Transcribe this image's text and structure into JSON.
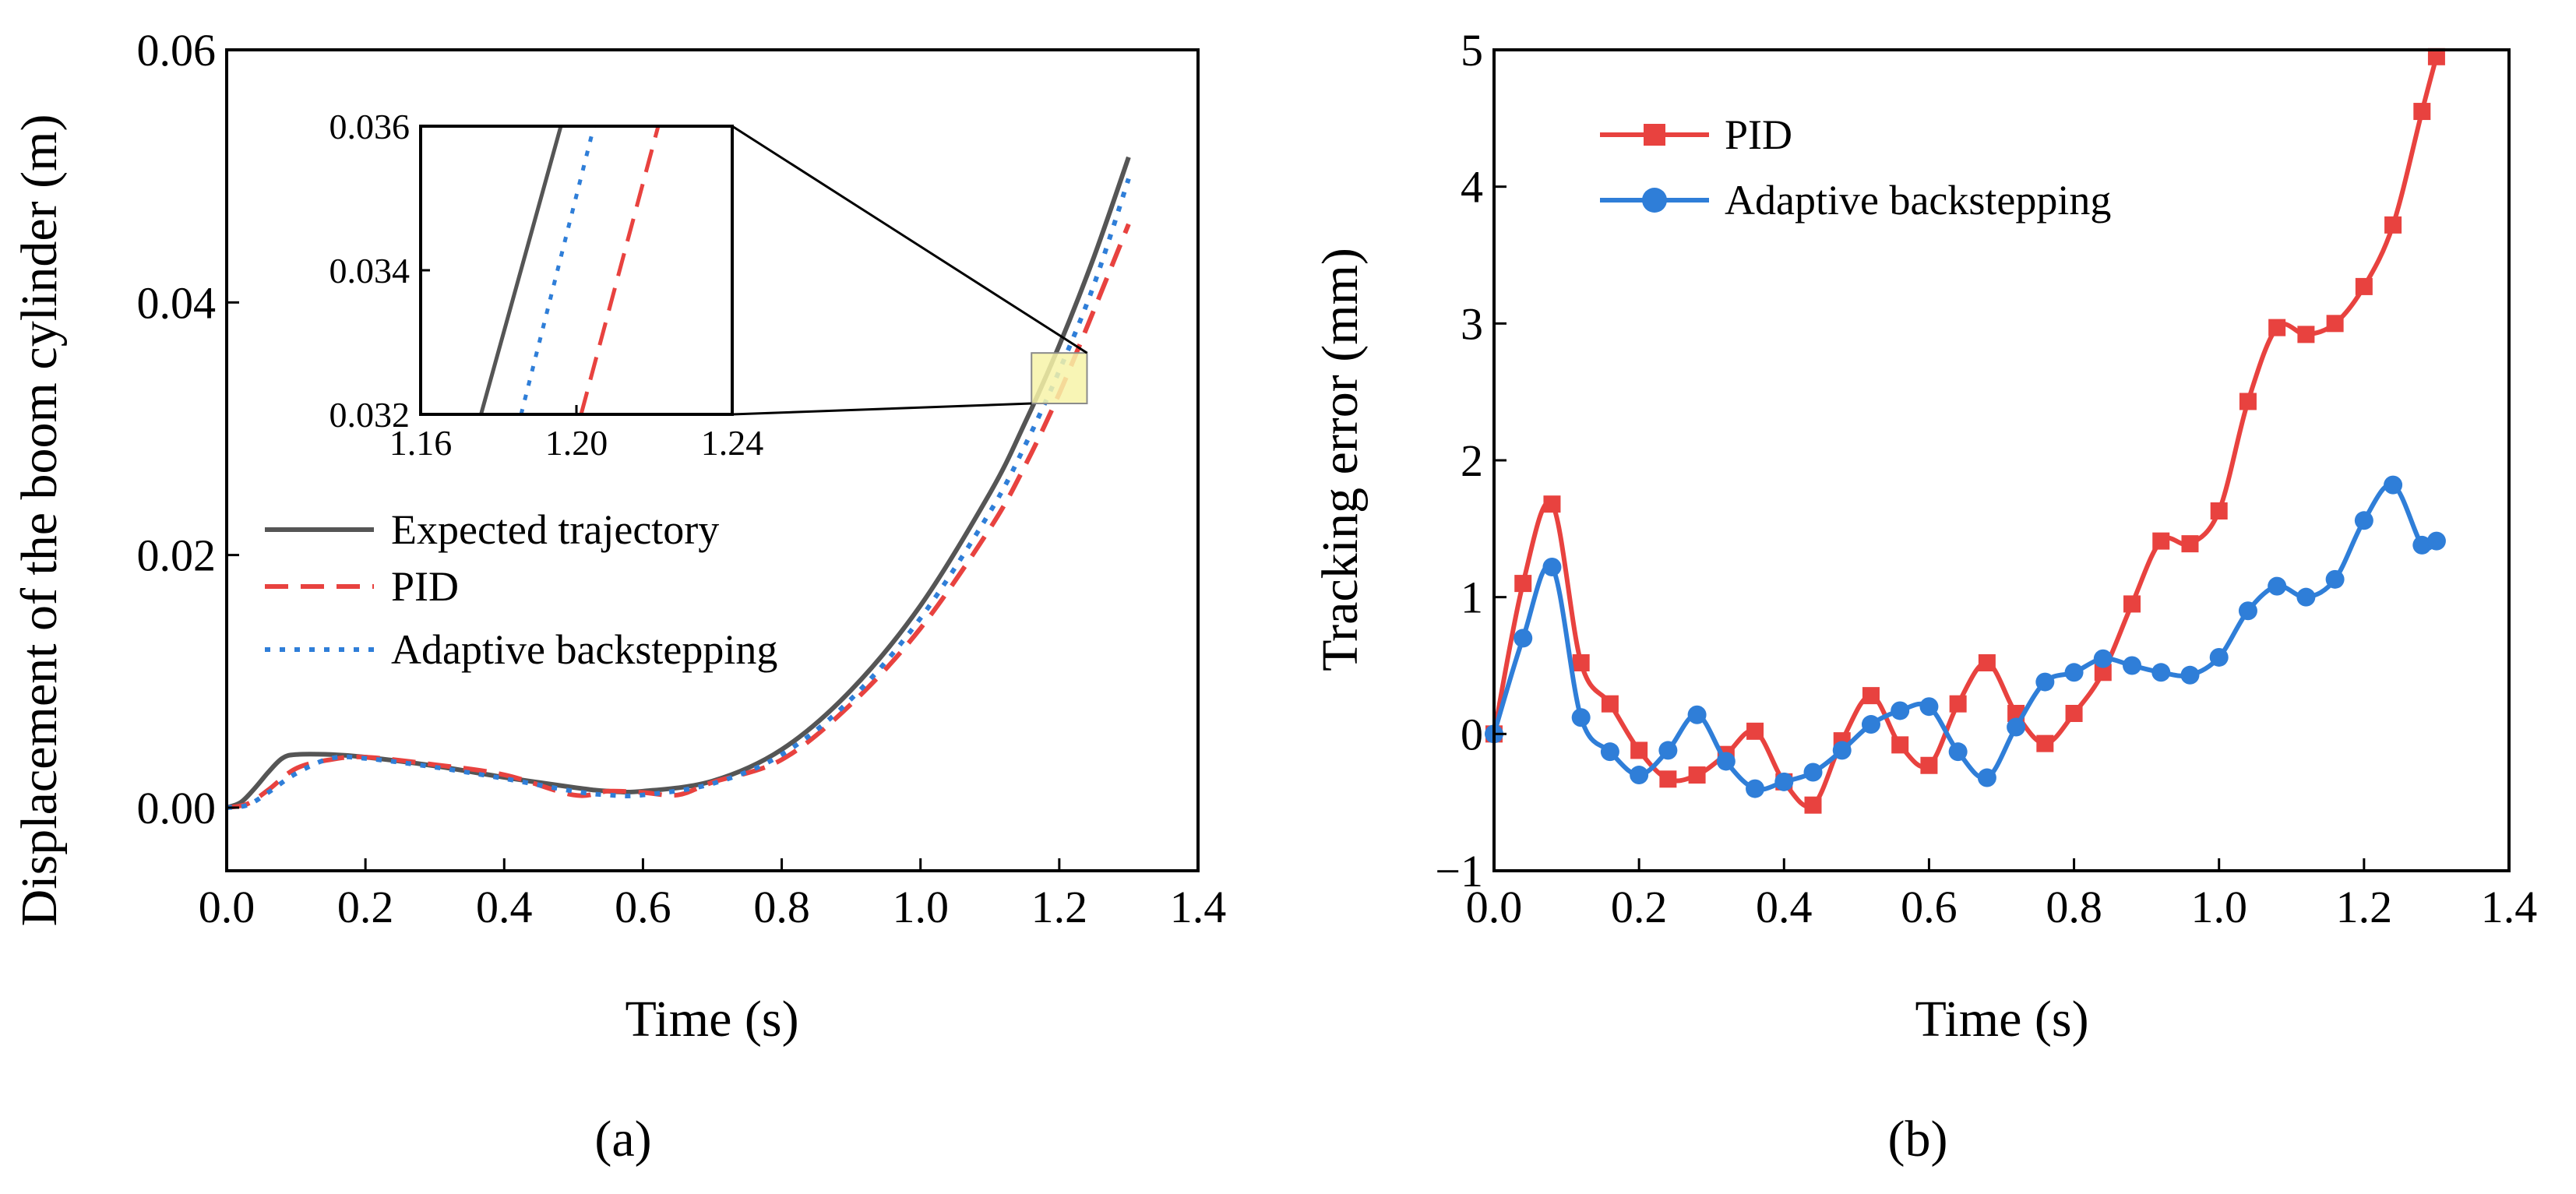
{
  "figure": {
    "panel_a_label": "(a)",
    "panel_b_label": "(b)"
  },
  "chart_data": [
    {
      "id": "a",
      "type": "line",
      "title": "",
      "xlabel": "Time (s)",
      "ylabel": "Displacement of the boom cylinder (m)",
      "xlim": [
        0.0,
        1.4
      ],
      "ylim": [
        -0.005,
        0.06
      ],
      "xticks": [
        "0.0",
        "0.2",
        "0.4",
        "0.6",
        "0.8",
        "1.0",
        "1.2",
        "1.4"
      ],
      "yticks": [
        "0.00",
        "0.02",
        "0.04",
        "0.06"
      ],
      "xtick_values": [
        0.0,
        0.2,
        0.4,
        0.6,
        0.8,
        1.0,
        1.2,
        1.4
      ],
      "ytick_values": [
        0.0,
        0.02,
        0.04,
        0.06
      ],
      "grid": false,
      "legend_position": "middle-left",
      "series": [
        {
          "name": "Expected trajectory",
          "color": "#555555",
          "style": "solid",
          "x": [
            0,
            0.02,
            0.04,
            0.06,
            0.08,
            0.1,
            0.15,
            0.2,
            0.3,
            0.4,
            0.5,
            0.55,
            0.6,
            0.7,
            0.8,
            0.9,
            1.0,
            1.1,
            1.15,
            1.2,
            1.25,
            1.3
          ],
          "y": [
            0,
            0.0004,
            0.0015,
            0.0028,
            0.0039,
            0.0042,
            0.0042,
            0.004,
            0.0033,
            0.0024,
            0.0016,
            0.0013,
            0.0013,
            0.0021,
            0.0046,
            0.0093,
            0.016,
            0.0249,
            0.0304,
            0.0366,
            0.0436,
            0.0515
          ]
        },
        {
          "name": "PID",
          "color": "#e8423f",
          "style": "dashed",
          "x": [
            0,
            0.03,
            0.06,
            0.1,
            0.15,
            0.2,
            0.3,
            0.4,
            0.5,
            0.55,
            0.6,
            0.65,
            0.7,
            0.8,
            0.9,
            1.0,
            1.1,
            1.15,
            1.2,
            1.25,
            1.3
          ],
          "y": [
            0,
            0.0003,
            0.0014,
            0.0031,
            0.0038,
            0.004,
            0.0034,
            0.0026,
            0.001,
            0.0013,
            0.0012,
            0.001,
            0.002,
            0.0038,
            0.0082,
            0.0142,
            0.0221,
            0.027,
            0.0328,
            0.0394,
            0.0462
          ]
        },
        {
          "name": "Adaptive backstepping",
          "color": "#2f7ed8",
          "style": "dotted",
          "x": [
            0,
            0.03,
            0.06,
            0.1,
            0.15,
            0.2,
            0.3,
            0.4,
            0.5,
            0.55,
            0.6,
            0.7,
            0.8,
            0.9,
            1.0,
            1.1,
            1.15,
            1.2,
            1.25,
            1.3
          ],
          "y": [
            0,
            0.0002,
            0.0012,
            0.0027,
            0.0039,
            0.0039,
            0.0032,
            0.0023,
            0.0013,
            0.001,
            0.001,
            0.0019,
            0.0042,
            0.0086,
            0.015,
            0.0234,
            0.0286,
            0.0346,
            0.0414,
            0.0498
          ]
        }
      ],
      "inset": {
        "xlim": [
          1.16,
          1.24
        ],
        "ylim": [
          0.032,
          0.036
        ],
        "xticks": [
          "1.16",
          "1.20",
          "1.24"
        ],
        "yticks": [
          "0.032",
          "0.034",
          "0.036"
        ],
        "xtick_values": [
          1.16,
          1.2,
          1.24
        ],
        "ytick_values": [
          0.032,
          0.034,
          0.036
        ],
        "lines": [
          {
            "name": "Expected trajectory",
            "x": [
              1.1755,
              1.196
            ],
            "y": [
              0.032,
              0.036
            ]
          },
          {
            "name": "Adaptive backstepping",
            "x": [
              1.1858,
              1.2045
            ],
            "y": [
              0.032,
              0.036
            ]
          },
          {
            "name": "PID",
            "x": [
              1.2012,
              1.221
            ],
            "y": [
              0.032,
              0.036
            ]
          }
        ],
        "zoom_box": {
          "x": [
            1.16,
            1.24
          ],
          "y": [
            0.032,
            0.036
          ],
          "fill": "#f7f3a8"
        }
      }
    },
    {
      "id": "b",
      "type": "line",
      "title": "",
      "xlabel": "Time (s)",
      "ylabel": "Tracking error (mm)",
      "xlim": [
        0.0,
        1.4
      ],
      "ylim": [
        -1,
        5
      ],
      "xticks": [
        "0.0",
        "0.2",
        "0.4",
        "0.6",
        "0.8",
        "1.0",
        "1.2",
        "1.4"
      ],
      "yticks": [
        "−1",
        "0",
        "1",
        "2",
        "3",
        "4",
        "5"
      ],
      "xtick_values": [
        0.0,
        0.2,
        0.4,
        0.6,
        0.8,
        1.0,
        1.2,
        1.4
      ],
      "ytick_values": [
        -1,
        0,
        1,
        2,
        3,
        4,
        5
      ],
      "grid": false,
      "legend_position": "top-left",
      "series": [
        {
          "name": "PID",
          "color": "#e8423f",
          "marker": "square",
          "x": [
            0,
            0.04,
            0.08,
            0.12,
            0.16,
            0.2,
            0.24,
            0.28,
            0.32,
            0.36,
            0.4,
            0.44,
            0.48,
            0.52,
            0.56,
            0.6,
            0.64,
            0.68,
            0.72,
            0.76,
            0.8,
            0.84,
            0.88,
            0.92,
            0.96,
            1.0,
            1.04,
            1.08,
            1.12,
            1.16,
            1.2,
            1.24,
            1.28,
            1.3
          ],
          "values": [
            0,
            1.1,
            1.68,
            0.52,
            0.22,
            -0.12,
            -0.33,
            -0.3,
            -0.15,
            0.02,
            -0.35,
            -0.52,
            -0.05,
            0.28,
            -0.08,
            -0.23,
            0.22,
            0.52,
            0.15,
            -0.07,
            0.15,
            0.45,
            0.95,
            1.41,
            1.39,
            1.63,
            2.43,
            2.97,
            2.92,
            3.0,
            3.27,
            3.72,
            4.55,
            4.95
          ]
        },
        {
          "name": "Adaptive backstepping",
          "color": "#2f7ed8",
          "marker": "circle",
          "x": [
            0,
            0.04,
            0.08,
            0.12,
            0.16,
            0.2,
            0.24,
            0.28,
            0.32,
            0.36,
            0.4,
            0.44,
            0.48,
            0.52,
            0.56,
            0.6,
            0.64,
            0.68,
            0.72,
            0.76,
            0.8,
            0.84,
            0.88,
            0.92,
            0.96,
            1.0,
            1.04,
            1.08,
            1.12,
            1.16,
            1.2,
            1.24,
            1.28,
            1.3
          ],
          "values": [
            0,
            0.7,
            1.22,
            0.12,
            -0.13,
            -0.3,
            -0.12,
            0.14,
            -0.2,
            -0.4,
            -0.35,
            -0.28,
            -0.12,
            0.07,
            0.17,
            0.2,
            -0.13,
            -0.32,
            0.05,
            0.38,
            0.45,
            0.55,
            0.5,
            0.45,
            0.43,
            0.56,
            0.9,
            1.08,
            1.0,
            1.13,
            1.56,
            1.82,
            1.38,
            1.41
          ]
        }
      ]
    }
  ]
}
